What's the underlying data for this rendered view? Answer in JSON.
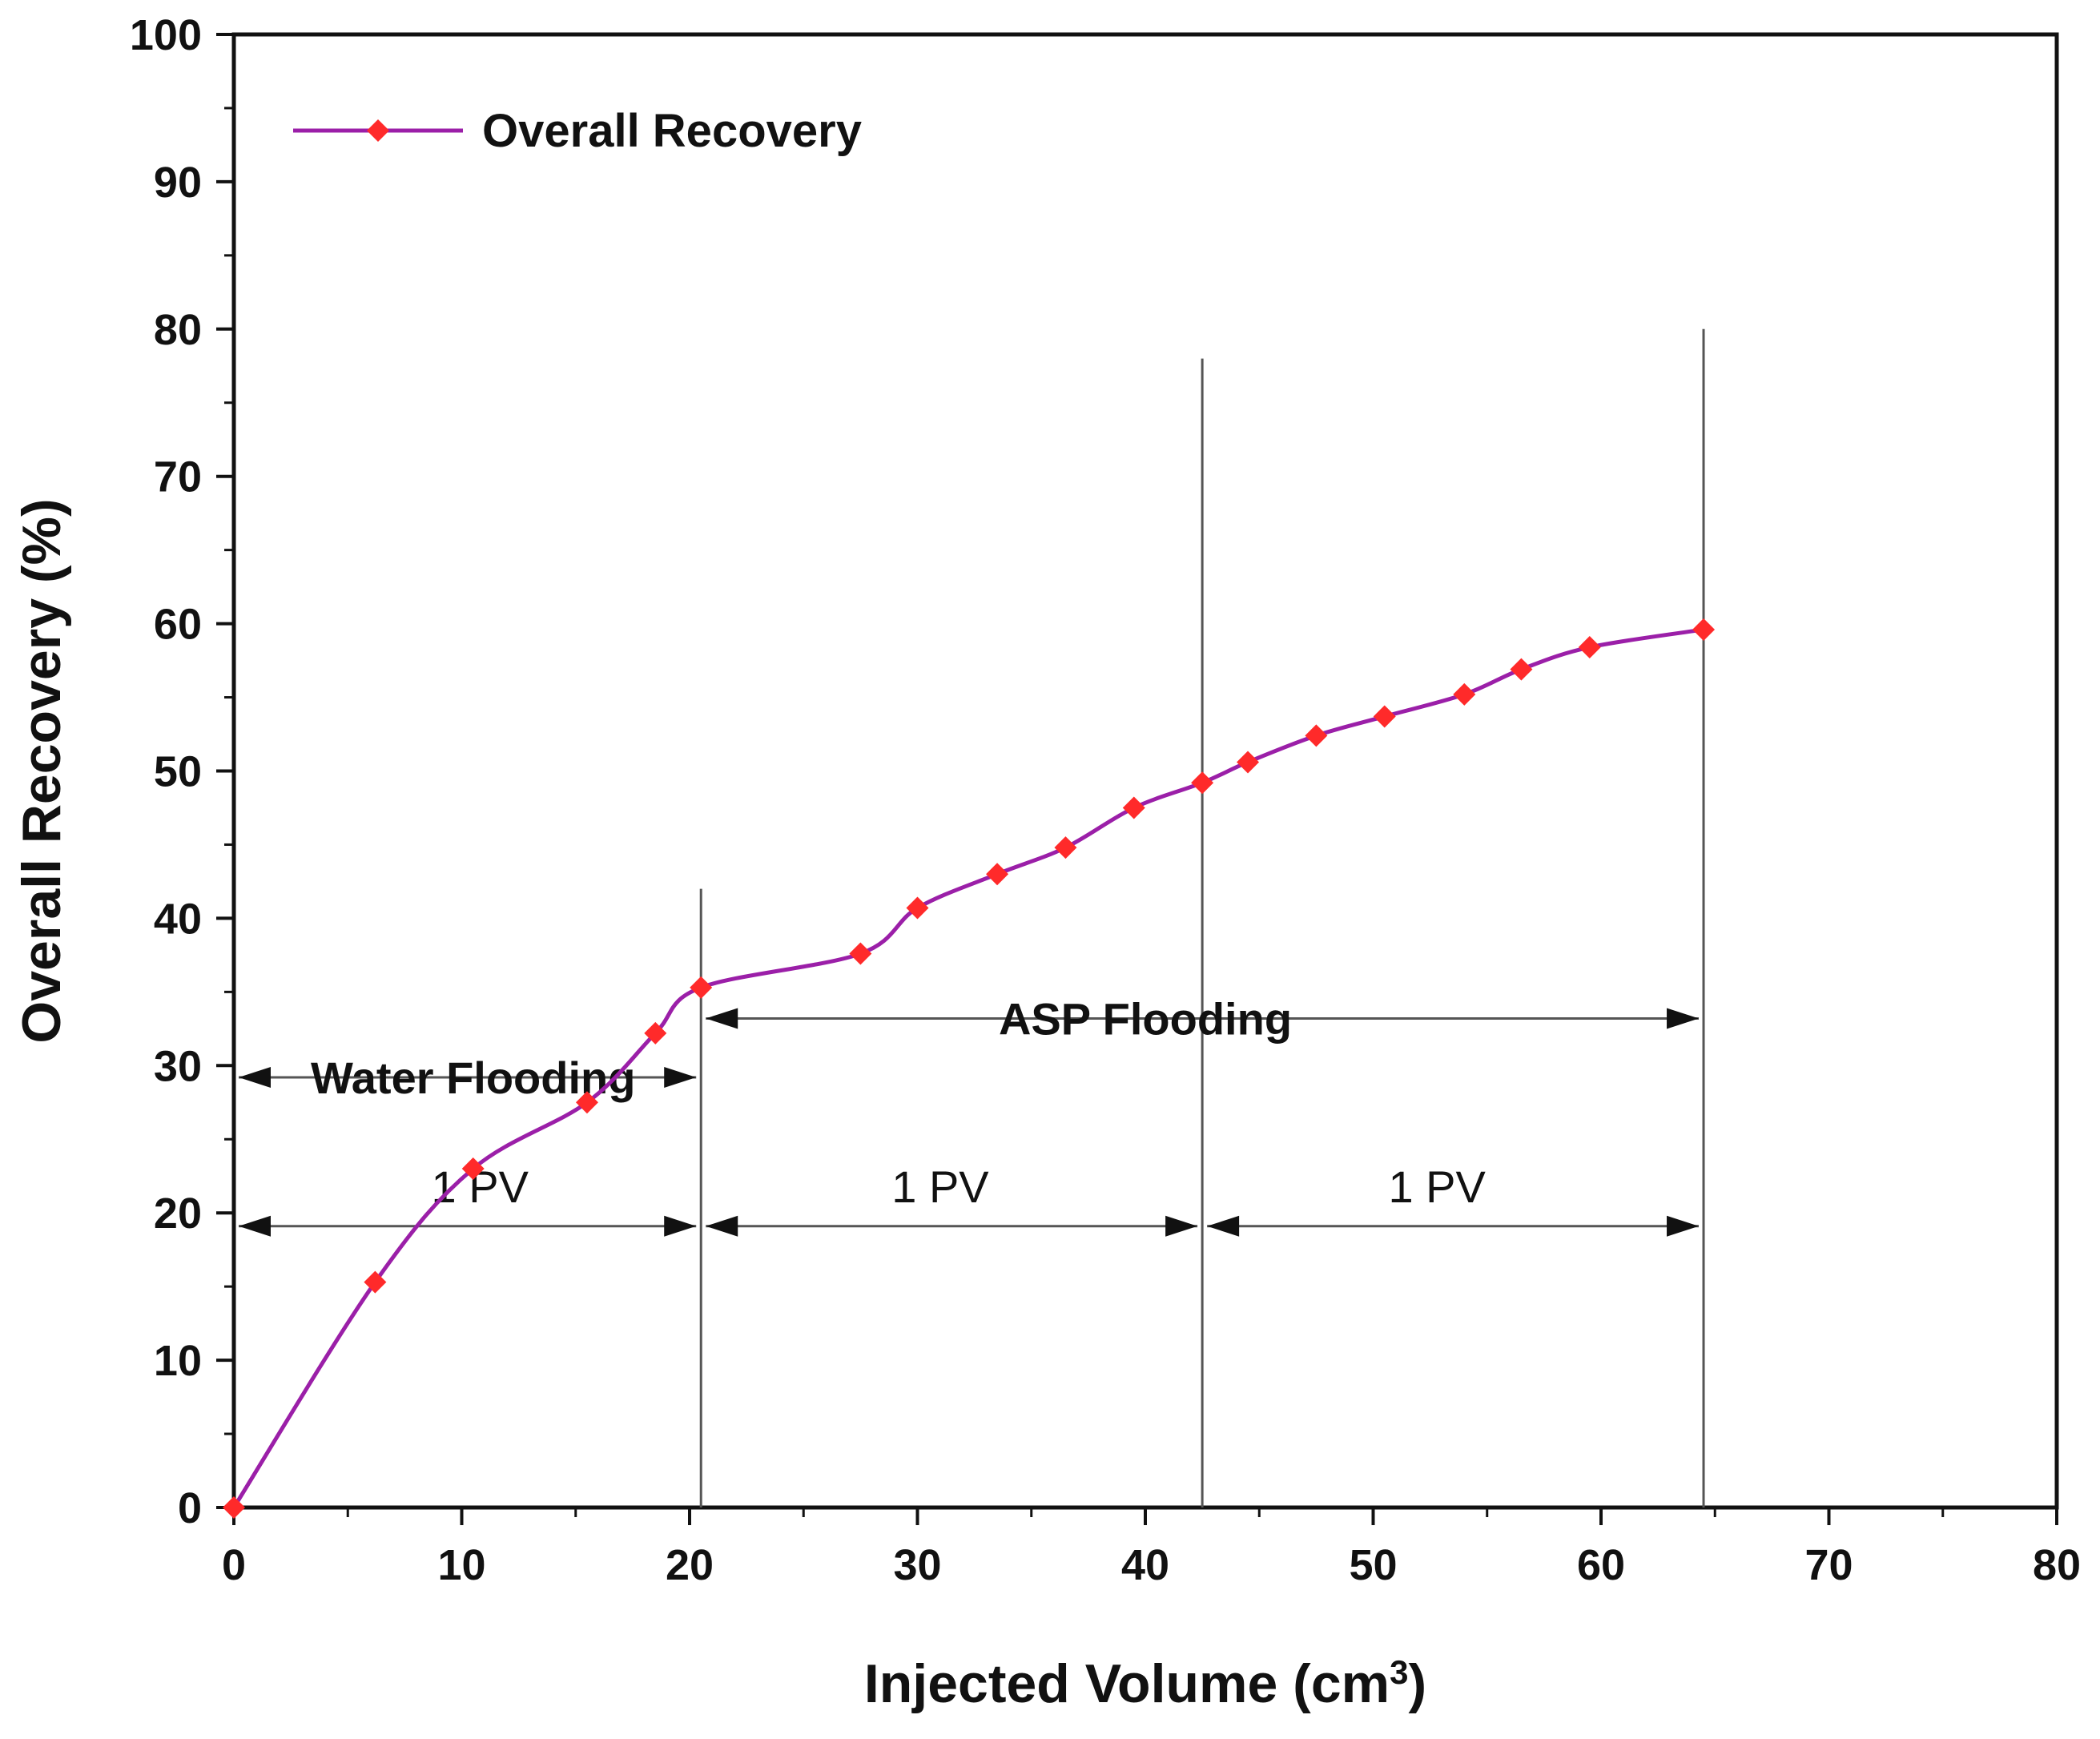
{
  "chart_data": {
    "type": "line",
    "title": "",
    "xlabel": "Injected Volume (cm",
    "xlabel_sup": "3",
    "xlabel_close": ")",
    "ylabel": "Overall Recovery (%)",
    "xlim": [
      0,
      80
    ],
    "ylim": [
      0,
      100
    ],
    "xticks": [
      0,
      10,
      20,
      30,
      40,
      50,
      60,
      70,
      80
    ],
    "yticks": [
      0,
      10,
      20,
      30,
      40,
      50,
      60,
      70,
      80,
      90,
      100
    ],
    "grid": false,
    "legend_position": "top-left",
    "series": [
      {
        "name": "Overall Recovery",
        "color": "#9b1fa8",
        "marker_color": "#ff2a2a",
        "x": [
          0,
          6.2,
          10.5,
          15.5,
          18.5,
          20.5,
          27.5,
          30,
          33.5,
          36.5,
          39.5,
          42.5,
          44.5,
          47.5,
          50.5,
          54,
          56.5,
          59.5,
          64.5
        ],
        "y": [
          0,
          15.3,
          23,
          27.5,
          32.2,
          35.3,
          37.6,
          40.7,
          43,
          44.8,
          47.5,
          49.2,
          50.6,
          52.4,
          53.7,
          55.2,
          56.9,
          58.4,
          59.6
        ]
      }
    ],
    "vertical_lines": [
      {
        "x": 20.5,
        "y_top": 42
      },
      {
        "x": 42.5,
        "y_top": 78
      },
      {
        "x": 64.5,
        "y_top": 80
      }
    ],
    "annotations": [
      {
        "text": "Water Flooding",
        "kind": "phase",
        "x_from": 0,
        "x_to": 20.5,
        "y": 29.2,
        "label_x": 10.5
      },
      {
        "text": "ASP Flooding",
        "kind": "phase",
        "x_from": 20.5,
        "x_to": 64.5,
        "y": 33.2,
        "label_x": 40
      },
      {
        "text": "1 PV",
        "kind": "pv",
        "x_from": 0,
        "x_to": 20.5,
        "y": 19.1,
        "label_x": 10.8
      },
      {
        "text": "1 PV",
        "kind": "pv",
        "x_from": 20.5,
        "x_to": 42.5,
        "y": 19.1,
        "label_x": 31
      },
      {
        "text": "1 PV",
        "kind": "pv",
        "x_from": 42.5,
        "x_to": 64.5,
        "y": 19.1,
        "label_x": 52.8
      }
    ]
  }
}
